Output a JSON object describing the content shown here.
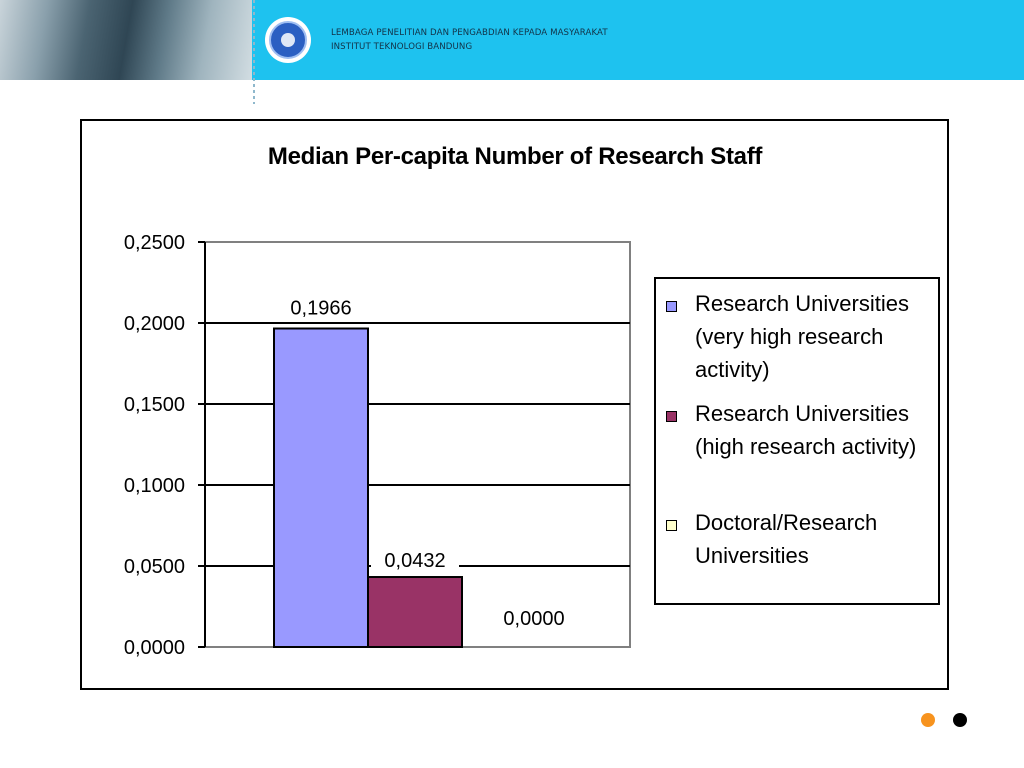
{
  "header": {
    "line1": "LEMBAGA PENELITIAN DAN  PENGABDIAN KEPADA MASYARAKAT",
    "line2": "INSTITUT TEKNOLOGI BANDUNG"
  },
  "chart_data": {
    "type": "bar",
    "title": "Median Per-capita Number of Research Staff",
    "xlabel": "",
    "ylabel": "",
    "ylim": [
      0,
      0.25
    ],
    "yticks": [
      0,
      0.05,
      0.1,
      0.15,
      0.2,
      0.25
    ],
    "ytick_labels": [
      "0,0000",
      "0,0500",
      "0,1000",
      "0,1500",
      "0,2000",
      "0,2500"
    ],
    "grid": true,
    "legend_position": "right",
    "series": [
      {
        "name": "Research Universities (very high research activity)",
        "value": 0.1966,
        "label": "0,1966",
        "color": "#9999ff"
      },
      {
        "name": "Research Universities (high research activity)",
        "value": 0.0432,
        "label": "0,0432",
        "color": "#993366"
      },
      {
        "name": "Doctoral/Research Universities",
        "value": 0.0,
        "label": "0,0000",
        "color": "#ffffcc"
      }
    ]
  },
  "nav": {
    "dot1_color": "#f7931e",
    "dot2_color": "#000000"
  }
}
